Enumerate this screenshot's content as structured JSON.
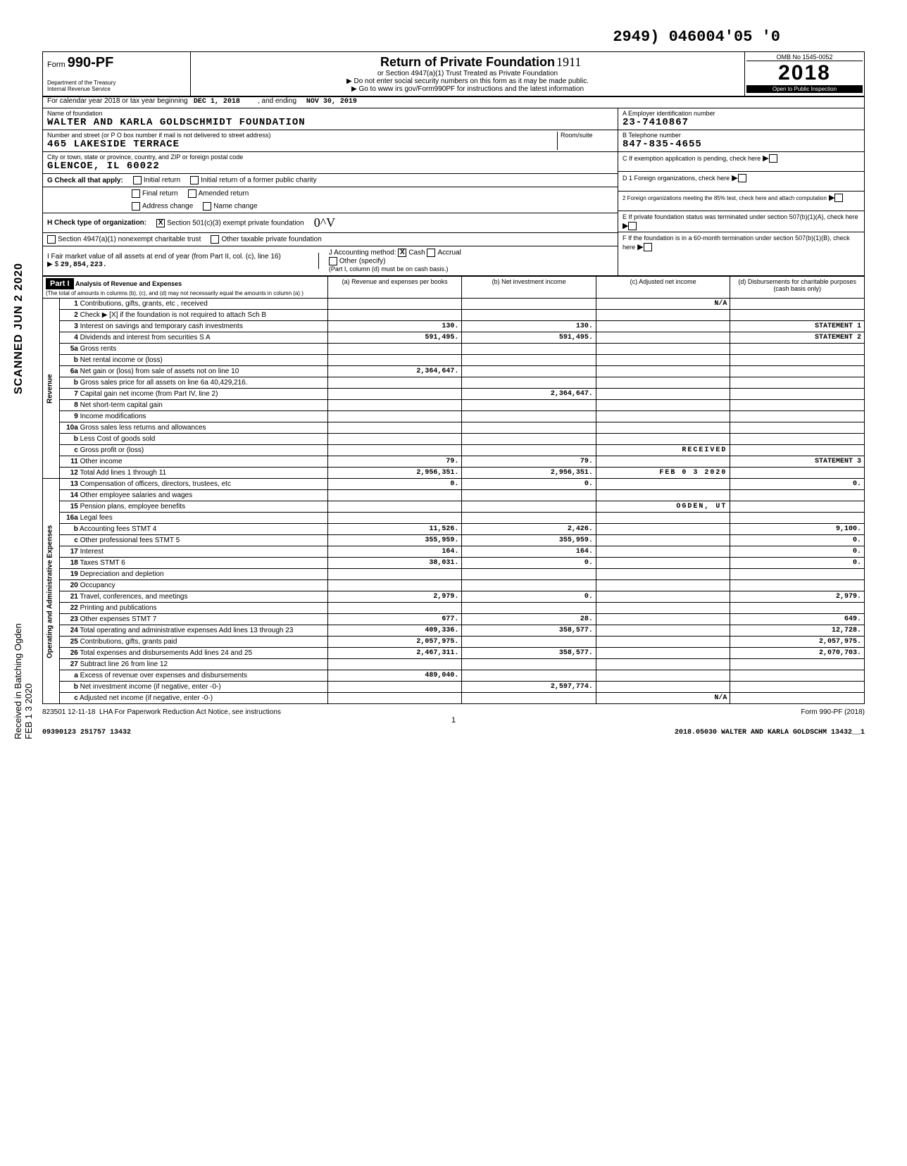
{
  "top_number": "2949) 046004'05 '0",
  "form": {
    "prefix": "Form",
    "number": "990-PF",
    "dept1": "Department of the Treasury",
    "dept2": "Internal Revenue Service"
  },
  "header": {
    "title": "Return of Private Foundation",
    "sub1": "or Section 4947(a)(1) Trust Treated as Private Foundation",
    "sub2": "▶ Do not enter social security numbers on this form as it may be made public.",
    "sub3": "▶ Go to www irs gov/Form990PF for instructions and the latest information",
    "omb": "OMB No 1545-0052",
    "year": "2018",
    "open": "Open to Public Inspection",
    "hand": "1911"
  },
  "calendar": {
    "label": "For calendar year 2018 or tax year beginning",
    "begin": "DEC 1, 2018",
    "mid": ", and ending",
    "end": "NOV 30, 2019"
  },
  "foundation": {
    "name_label": "Name of foundation",
    "name": "WALTER AND KARLA GOLDSCHMIDT FOUNDATION",
    "addr_label": "Number and street (or P O box number if mail is not delivered to street address)",
    "addr": "465 LAKESIDE TERRACE",
    "room_label": "Room/suite",
    "city_label": "City or town, state or province, country, and ZIP or foreign postal code",
    "city": "GLENCOE, IL   60022"
  },
  "boxA": {
    "label": "A  Employer identification number",
    "value": "23-7410867"
  },
  "boxB": {
    "label": "B  Telephone number",
    "value": "847-835-4655"
  },
  "boxC": {
    "label": "C  If exemption application is pending, check here"
  },
  "boxD1": {
    "label": "D 1  Foreign organizations, check here"
  },
  "boxD2": {
    "label": "2  Foreign organizations meeting the 85% test, check here and attach computation"
  },
  "boxE": {
    "label": "E  If private foundation status was terminated under section 507(b)(1)(A), check here"
  },
  "boxF": {
    "label": "F  If the foundation is in a 60-month termination under section 507(b)(1)(B), check here"
  },
  "G": {
    "label": "G  Check all that apply:",
    "opts": [
      "Initial return",
      "Final return",
      "Address change",
      "Initial return of a former public charity",
      "Amended return",
      "Name change"
    ]
  },
  "H": {
    "label": "H  Check type of organization:",
    "opt1": "Section 501(c)(3) exempt private foundation",
    "opt2": "Section 4947(a)(1) nonexempt charitable trust",
    "opt3": "Other taxable private foundation",
    "hand": "0^V"
  },
  "I": {
    "label": "I  Fair market value of all assets at end of year (from Part II, col. (c), line 16)",
    "arrow": "▶ $",
    "value": "29,854,223."
  },
  "J": {
    "label": "J  Accounting method:",
    "cash": "Cash",
    "accrual": "Accrual",
    "other": "Other (specify)",
    "note": "(Part I, column (d) must be on cash basis.)"
  },
  "part1": {
    "label": "Part I",
    "desc": "Analysis of Revenue and Expenses",
    "note": "(The total of amounts in columns (b), (c), and (d) may not necessarily equal the amounts in column (a) )",
    "cols": {
      "a": "(a) Revenue and expenses per books",
      "b": "(b) Net investment income",
      "c": "(c) Adjusted net income",
      "d": "(d) Disbursements for charitable purposes (cash basis only)"
    }
  },
  "sections": {
    "revenue": "Revenue",
    "opexp": "Operating and Administrative Expenses"
  },
  "rows": [
    {
      "n": "1",
      "d": "Contributions, gifts, grants, etc , received",
      "a": "",
      "b": "",
      "c": "N/A",
      "e": ""
    },
    {
      "n": "2",
      "d": "Check ▶ [X] if the foundation is not required to attach Sch B",
      "a": "",
      "b": "",
      "c": "",
      "e": ""
    },
    {
      "n": "3",
      "d": "Interest on savings and temporary cash investments",
      "a": "130.",
      "b": "130.",
      "c": "",
      "e": "STATEMENT 1"
    },
    {
      "n": "4",
      "d": "Dividends and interest from securities  S A",
      "a": "591,495.",
      "b": "591,495.",
      "c": "",
      "e": "STATEMENT 2"
    },
    {
      "n": "5a",
      "d": "Gross rents",
      "a": "",
      "b": "",
      "c": "",
      "e": ""
    },
    {
      "n": "b",
      "d": "Net rental income or (loss)",
      "a": "",
      "b": "",
      "c": "",
      "e": ""
    },
    {
      "n": "6a",
      "d": "Net gain or (loss) from sale of assets not on line 10",
      "a": "2,364,647.",
      "b": "",
      "c": "",
      "e": ""
    },
    {
      "n": "b",
      "d": "Gross sales price for all assets on line 6a   40,429,216.",
      "a": "",
      "b": "",
      "c": "",
      "e": ""
    },
    {
      "n": "7",
      "d": "Capital gain net income (from Part IV, line 2)",
      "a": "",
      "b": "2,364,647.",
      "c": "",
      "e": ""
    },
    {
      "n": "8",
      "d": "Net short-term capital gain",
      "a": "",
      "b": "",
      "c": "",
      "e": ""
    },
    {
      "n": "9",
      "d": "Income modifications",
      "a": "",
      "b": "",
      "c": "",
      "e": ""
    },
    {
      "n": "10a",
      "d": "Gross sales less returns and allowances",
      "a": "",
      "b": "",
      "c": "",
      "e": ""
    },
    {
      "n": "b",
      "d": "Less Cost of goods sold",
      "a": "",
      "b": "",
      "c": "",
      "e": ""
    },
    {
      "n": "c",
      "d": "Gross profit or (loss)",
      "a": "",
      "b": "",
      "c": "RECEIVED",
      "e": ""
    },
    {
      "n": "11",
      "d": "Other income",
      "a": "79.",
      "b": "79.",
      "c": "",
      "e": "STATEMENT 3"
    },
    {
      "n": "12",
      "d": "Total  Add lines 1 through 11",
      "a": "2,956,351.",
      "b": "2,956,351.",
      "c": "FEB 0 3 2020",
      "e": ""
    },
    {
      "n": "13",
      "d": "Compensation of officers, directors, trustees, etc",
      "a": "0.",
      "b": "0.",
      "c": "",
      "e": "0."
    },
    {
      "n": "14",
      "d": "Other employee salaries and wages",
      "a": "",
      "b": "",
      "c": "",
      "e": ""
    },
    {
      "n": "15",
      "d": "Pension plans, employee benefits",
      "a": "",
      "b": "",
      "c": "OGDEN, UT",
      "e": ""
    },
    {
      "n": "16a",
      "d": "Legal fees",
      "a": "",
      "b": "",
      "c": "",
      "e": ""
    },
    {
      "n": "b",
      "d": "Accounting fees            STMT 4",
      "a": "11,526.",
      "b": "2,426.",
      "c": "",
      "e": "9,100."
    },
    {
      "n": "c",
      "d": "Other professional fees    STMT 5",
      "a": "355,959.",
      "b": "355,959.",
      "c": "",
      "e": "0."
    },
    {
      "n": "17",
      "d": "Interest",
      "a": "164.",
      "b": "164.",
      "c": "",
      "e": "0."
    },
    {
      "n": "18",
      "d": "Taxes                      STMT 6",
      "a": "38,031.",
      "b": "0.",
      "c": "",
      "e": "0."
    },
    {
      "n": "19",
      "d": "Depreciation and depletion",
      "a": "",
      "b": "",
      "c": "",
      "e": ""
    },
    {
      "n": "20",
      "d": "Occupancy",
      "a": "",
      "b": "",
      "c": "",
      "e": ""
    },
    {
      "n": "21",
      "d": "Travel, conferences, and meetings",
      "a": "2,979.",
      "b": "0.",
      "c": "",
      "e": "2,979."
    },
    {
      "n": "22",
      "d": "Printing and publications",
      "a": "",
      "b": "",
      "c": "",
      "e": ""
    },
    {
      "n": "23",
      "d": "Other expenses             STMT 7",
      "a": "677.",
      "b": "28.",
      "c": "",
      "e": "649."
    },
    {
      "n": "24",
      "d": "Total operating and administrative expenses  Add lines 13 through 23",
      "a": "409,336.",
      "b": "358,577.",
      "c": "",
      "e": "12,728."
    },
    {
      "n": "25",
      "d": "Contributions, gifts, grants paid",
      "a": "2,057,975.",
      "b": "",
      "c": "",
      "e": "2,057,975."
    },
    {
      "n": "26",
      "d": "Total expenses and disbursements Add lines 24 and 25",
      "a": "2,467,311.",
      "b": "358,577.",
      "c": "",
      "e": "2,070,703."
    },
    {
      "n": "27",
      "d": "Subtract line 26 from line 12",
      "a": "",
      "b": "",
      "c": "",
      "e": ""
    },
    {
      "n": "a",
      "d": "Excess of revenue over expenses and disbursements",
      "a": "489,040.",
      "b": "",
      "c": "",
      "e": ""
    },
    {
      "n": "b",
      "d": "Net investment income (if negative, enter -0-)",
      "a": "",
      "b": "2,597,774.",
      "c": "",
      "e": ""
    },
    {
      "n": "c",
      "d": "Adjusted net income (if negative, enter -0-)",
      "a": "",
      "b": "",
      "c": "N/A",
      "e": ""
    }
  ],
  "footer": {
    "code": "823501 12-11-18",
    "lha": "LHA  For Paperwork Reduction Act Notice, see instructions",
    "form": "Form 990-PF (2018)",
    "page": "1",
    "bl": "09390123 251757 13432",
    "br": "2018.05030 WALTER AND KARLA GOLDSCHM 13432__1"
  },
  "side": {
    "scanned": "SCANNED JUN 2 2020",
    "received": "Received in Batching Ogden",
    "date": "FEB 1 3 2020"
  }
}
